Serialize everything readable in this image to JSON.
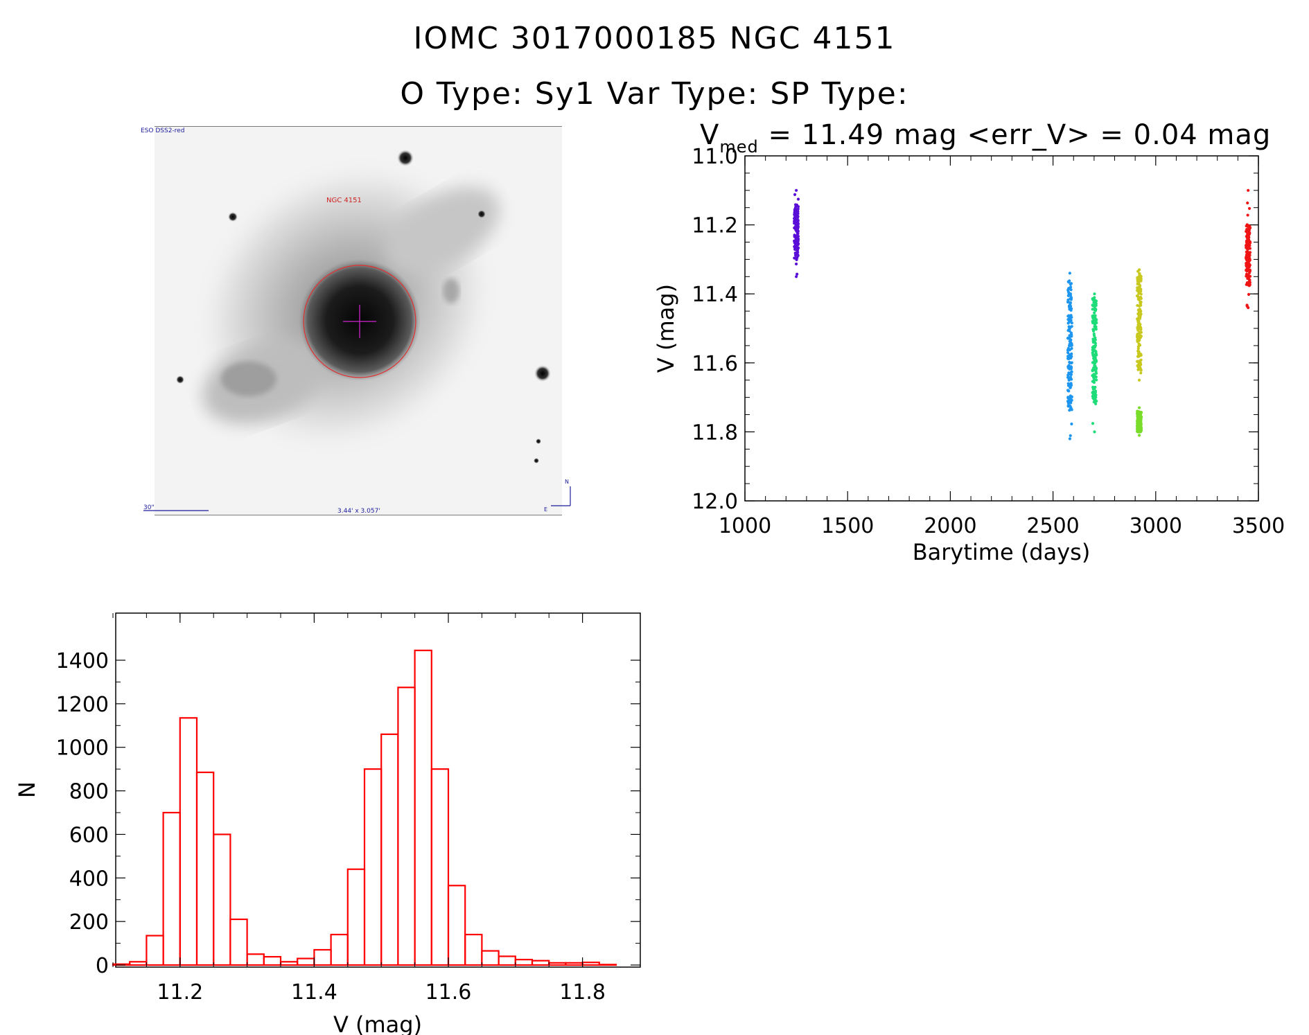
{
  "header": {
    "id_line": "IOMC 3017000185    NGC  4151",
    "type_line": "O Type: Sy1   Var Type:    SP Type:"
  },
  "image_panel": {
    "survey_label": "ESO DSS2-red",
    "object_label": "NGC 4151",
    "scale_label": "30\"",
    "size_label": "3.44' x 3.057'",
    "north_label": "N",
    "east_label": "E"
  },
  "lightcurve": {
    "stat_v": "V",
    "stat_sub": "med",
    "stat_rest": " = 11.49 mag <err_V> = 0.04 mag"
  },
  "chart_data": [
    {
      "type": "scatter",
      "xlabel": "Barytime (days)",
      "ylabel": "V (mag)",
      "xlim": [
        1000,
        3500
      ],
      "ylim": [
        12.0,
        11.0
      ],
      "y_inverted": true,
      "x_ticks": [
        1000,
        1500,
        2000,
        2500,
        3000,
        3500
      ],
      "y_ticks": [
        "11.0",
        "11.2",
        "11.4",
        "11.6",
        "11.8",
        "12.0"
      ],
      "series": [
        {
          "x": 1250,
          "v_top": 11.1,
          "v_bottom": 11.35,
          "v_dense_top": 11.14,
          "v_dense_bottom": 11.3,
          "color": "#5a0fd8"
        },
        {
          "x": 2582,
          "v_top": 11.34,
          "v_bottom": 11.82,
          "v_dense_top": 11.36,
          "v_dense_bottom": 11.74,
          "color": "#1e96f0"
        },
        {
          "x": 2702,
          "v_top": 11.4,
          "v_bottom": 11.8,
          "v_dense_top": 11.41,
          "v_dense_bottom": 11.72,
          "color": "#1edc78"
        },
        {
          "x": 2920,
          "v_top": 11.33,
          "v_bottom": 11.65,
          "v_dense_top": 11.34,
          "v_dense_bottom": 11.63,
          "color": "#c8c81e"
        },
        {
          "x": 2920,
          "v_top": 11.73,
          "v_bottom": 11.81,
          "v_dense_top": 11.74,
          "v_dense_bottom": 11.8,
          "color": "#78dc28"
        },
        {
          "x": 3450,
          "v_top": 11.1,
          "v_bottom": 11.44,
          "v_dense_top": 11.2,
          "v_dense_bottom": 11.38,
          "color": "#f01414"
        }
      ]
    },
    {
      "type": "bar",
      "subtype": "histogram",
      "xlabel": "V (mag)",
      "ylabel": "N",
      "xlim": [
        11.1,
        11.85
      ],
      "ylim": [
        0,
        1440
      ],
      "x_ticks": [
        "11.2",
        "11.4",
        "11.6",
        "11.8"
      ],
      "y_ticks": [
        "0",
        "200",
        "400",
        "600",
        "800",
        "1000",
        "1200",
        "1400"
      ],
      "bin_width": 0.025,
      "bin_start": 11.1,
      "values": [
        4,
        15,
        135,
        700,
        1135,
        885,
        600,
        210,
        50,
        38,
        15,
        30,
        70,
        140,
        440,
        900,
        1060,
        1275,
        1445,
        900,
        365,
        140,
        65,
        40,
        25,
        20,
        10,
        10,
        12,
        2
      ],
      "color": "#ff0000"
    }
  ]
}
